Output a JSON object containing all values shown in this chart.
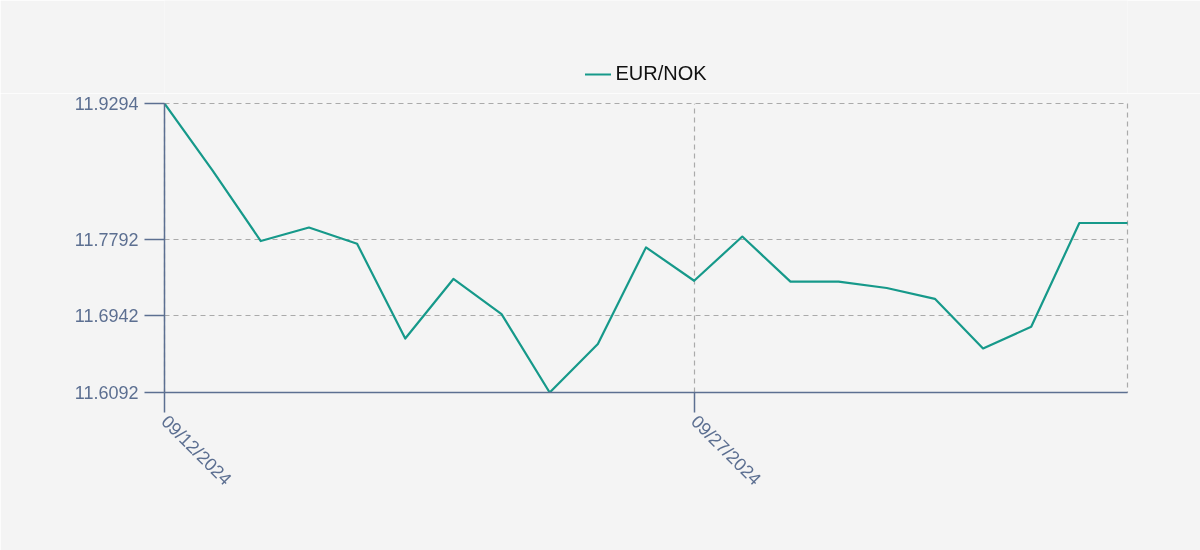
{
  "chart_data": {
    "type": "line",
    "categories": [
      "09/12/2024",
      null,
      null,
      null,
      null,
      null,
      null,
      null,
      null,
      null,
      null,
      "09/27/2024",
      null,
      null,
      null,
      null,
      null,
      null,
      null,
      null,
      null
    ],
    "series": [
      {
        "name": "EUR/NOK",
        "color": "#16998a",
        "values": [
          11.9294,
          11.855,
          11.777,
          11.792,
          11.774,
          11.669,
          11.735,
          11.696,
          11.6092,
          11.663,
          11.77,
          11.733,
          11.782,
          11.732,
          11.732,
          11.725,
          11.713,
          11.658,
          11.682,
          11.797,
          11.797
        ]
      }
    ],
    "ylim": [
      11.6092,
      11.9294
    ],
    "yticks": [
      11.6092,
      11.6942,
      11.7792,
      11.9294
    ],
    "grid": true,
    "legend": "top",
    "line_style": "solid"
  }
}
